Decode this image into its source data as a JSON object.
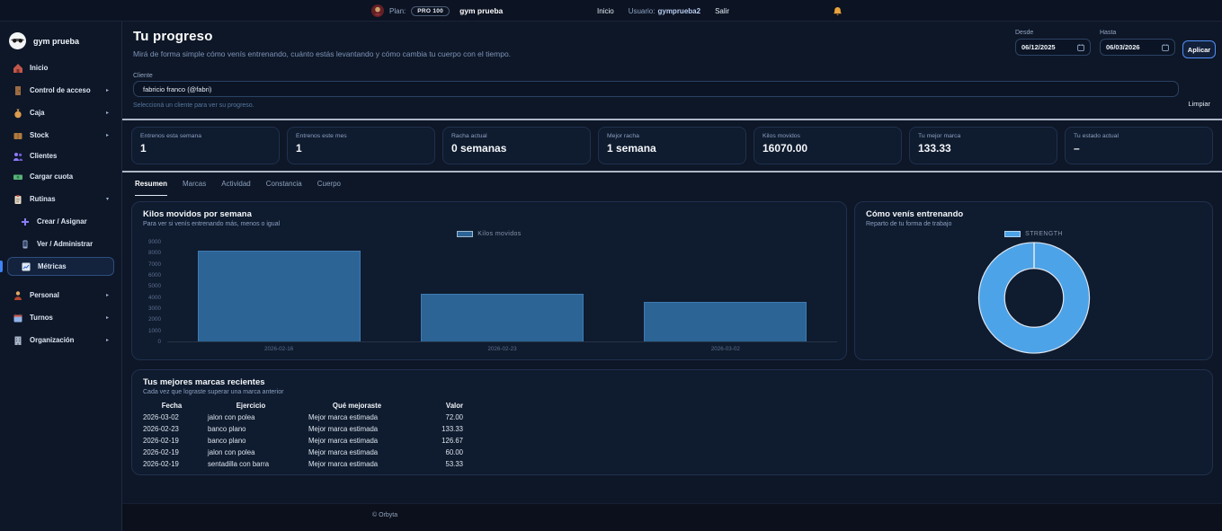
{
  "topbar": {
    "plan_label": "Plan:",
    "plan_badge": "PRO 100",
    "gym_name": "gym prueba",
    "nav": {
      "inicio": "Inicio",
      "usuario_label": "Usuario:",
      "usuario_name": "gymprueba2",
      "salir": "Salir"
    }
  },
  "sidebar": {
    "brand": "gym prueba",
    "items": [
      {
        "label": "Inicio"
      },
      {
        "label": "Control de acceso",
        "chevron": "▸"
      },
      {
        "label": "Caja",
        "chevron": "▸"
      },
      {
        "label": "Stock",
        "chevron": "▸"
      },
      {
        "label": "Clientes"
      },
      {
        "label": "Cargar cuota"
      },
      {
        "label": "Rutinas",
        "chevron": "▾"
      },
      {
        "label": "Crear / Asignar",
        "sub": true
      },
      {
        "label": "Ver / Administrar",
        "sub": true
      },
      {
        "label": "Métricas",
        "sub": true,
        "selected": true
      },
      {
        "label": "Personal",
        "chevron": "▸"
      },
      {
        "label": "Turnos",
        "chevron": "▸"
      },
      {
        "label": "Organización",
        "chevron": "▸"
      }
    ]
  },
  "header": {
    "title": "Tu progreso",
    "subtitle": "Mirá de forma simple cómo venís entrenando, cuánto estás levantando y cómo cambia tu cuerpo con el tiempo.",
    "desde_label": "Desde",
    "desde_value": "06/12/2025",
    "hasta_label": "Hasta",
    "hasta_value": "06/03/2026",
    "aplicar_label": "Aplicar",
    "cliente_label": "Cliente",
    "cliente_value": "fabricio franco (@fabri)",
    "cliente_helper": "Seleccioná un cliente para ver su progreso.",
    "limpiar_label": "Limpiar"
  },
  "stats": [
    {
      "label": "Entrenos esta semana",
      "value": "1"
    },
    {
      "label": "Entrenos este mes",
      "value": "1"
    },
    {
      "label": "Racha actual",
      "value": "0 semanas"
    },
    {
      "label": "Mejor racha",
      "value": "1 semana"
    },
    {
      "label": "Kilos movidos",
      "value": "16070.00"
    },
    {
      "label": "Tu mejor marca",
      "value": "133.33"
    },
    {
      "label": "Tu estado actual",
      "value": "–"
    }
  ],
  "tabs": [
    {
      "label": "Resumen",
      "active": true
    },
    {
      "label": "Marcas"
    },
    {
      "label": "Actividad"
    },
    {
      "label": "Constancia"
    },
    {
      "label": "Cuerpo"
    }
  ],
  "chart_data": [
    {
      "type": "bar",
      "title": "Kilos movidos por semana",
      "subtitle": "Para ver si venís entrenando más, menos o igual",
      "legend": "Kilos movidos",
      "legend_position": "top-center",
      "categories": [
        "2026-02-16",
        "2026-02-23",
        "2026-03-02"
      ],
      "values": [
        8200,
        4300,
        3570
      ],
      "xlabel": "",
      "ylabel": "",
      "ylim": [
        0,
        9000
      ],
      "ytick_step": 1000,
      "grid": false,
      "bar_color": "#2c6496"
    },
    {
      "type": "pie",
      "title": "Cómo venís entrenando",
      "subtitle": "Reparto de tu forma de trabajo",
      "legend_position": "top-center",
      "labels": [
        "STRENGTH"
      ],
      "values": [
        100
      ],
      "colors": [
        "#4da3e8"
      ],
      "donut": true
    }
  ],
  "table": {
    "title": "Tus mejores marcas recientes",
    "subtitle": "Cada vez que lograste superar una marca anterior",
    "headers": [
      "Fecha",
      "Ejercicio",
      "Qué mejoraste",
      "Valor"
    ],
    "rows": [
      [
        "2026-03-02",
        "jalon con polea",
        "Mejor marca estimada",
        "72.00"
      ],
      [
        "2026-02-23",
        "banco plano",
        "Mejor marca estimada",
        "133.33"
      ],
      [
        "2026-02-19",
        "banco plano",
        "Mejor marca estimada",
        "126.67"
      ],
      [
        "2026-02-19",
        "jalon con polea",
        "Mejor marca estimada",
        "60.00"
      ],
      [
        "2026-02-19",
        "sentadilla con barra",
        "Mejor marca estimada",
        "53.33"
      ]
    ]
  },
  "footer": {
    "copyright": "© Orbyta"
  }
}
